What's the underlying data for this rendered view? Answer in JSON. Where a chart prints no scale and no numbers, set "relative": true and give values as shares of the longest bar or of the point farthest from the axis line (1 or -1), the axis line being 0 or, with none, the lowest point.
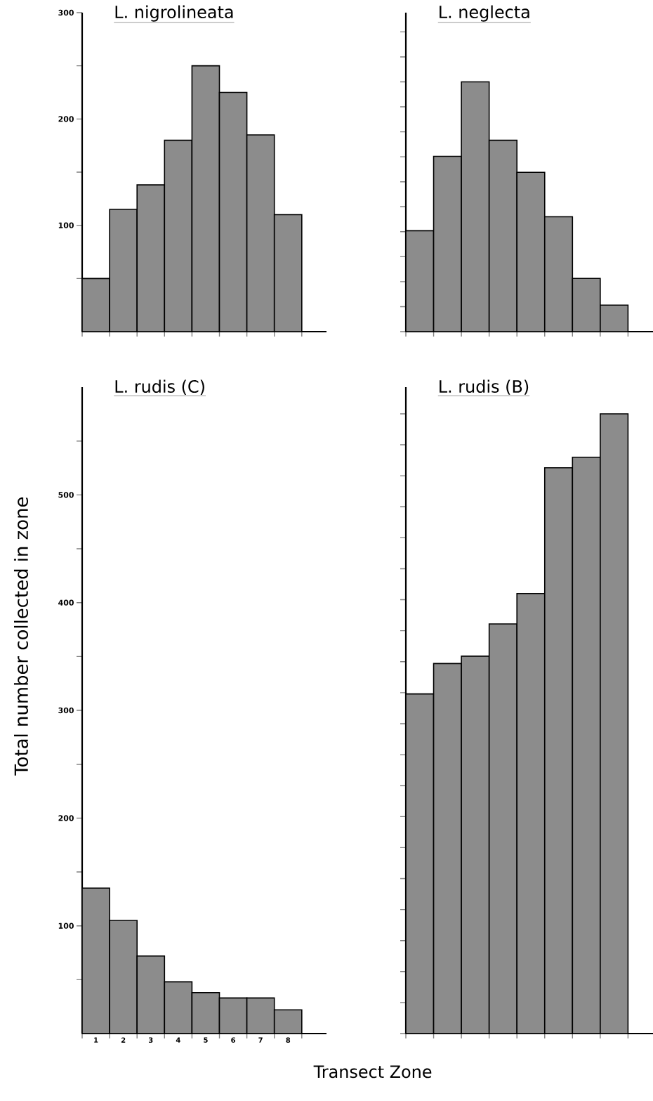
{
  "chart_data": [
    {
      "type": "bar",
      "title": "L. nigrolineata",
      "categories": [
        null,
        null,
        null,
        null,
        null,
        null,
        null,
        null
      ],
      "values": [
        50,
        115,
        138,
        180,
        250,
        225,
        185,
        110
      ],
      "color": "#8c8c8c",
      "ylim": [
        0,
        300
      ],
      "yticks": [
        {
          "value": 50,
          "label": null
        },
        100,
        {
          "value": 150,
          "label": null
        },
        200,
        {
          "value": 250,
          "label": null
        },
        300
      ],
      "tick_labels": "y"
    },
    {
      "type": "bar",
      "title": "L. neglecta",
      "categories": [
        null,
        null,
        null,
        null,
        null,
        null,
        null,
        null
      ],
      "values": [
        0.404,
        0.702,
        1,
        0.766,
        0.638,
        0.46,
        0.213,
        0.106
      ],
      "color": "#8c8c8c",
      "relative": true,
      "tick_labels": false
    },
    {
      "type": "bar",
      "title": "L. rudis (C)",
      "xlabel": "Transect Zone",
      "ylabel": "Total number collected in zone",
      "categories": [
        "1",
        "2",
        "3",
        "4",
        "5",
        "6",
        "7",
        "8"
      ],
      "values": [
        135,
        105,
        72,
        48,
        38,
        33,
        33,
        22
      ],
      "color": "#8c8c8c",
      "ylim": [
        0,
        600
      ],
      "yticks": [
        {
          "value": 50,
          "label": null
        },
        100,
        {
          "value": 150,
          "label": null
        },
        200,
        {
          "value": 250,
          "label": null
        },
        300,
        {
          "value": 350,
          "label": null
        },
        400,
        {
          "value": 450,
          "label": null
        },
        500,
        {
          "value": 550,
          "label": null
        }
      ]
    },
    {
      "type": "bar",
      "title": "L. rudis (B)",
      "categories": [
        null,
        null,
        null,
        null,
        null,
        null,
        null,
        null
      ],
      "values": [
        0.548,
        0.597,
        0.609,
        0.661,
        0.71,
        0.913,
        0.93,
        1
      ],
      "color": "#8c8c8c",
      "relative": true,
      "tick_labels": false
    }
  ]
}
